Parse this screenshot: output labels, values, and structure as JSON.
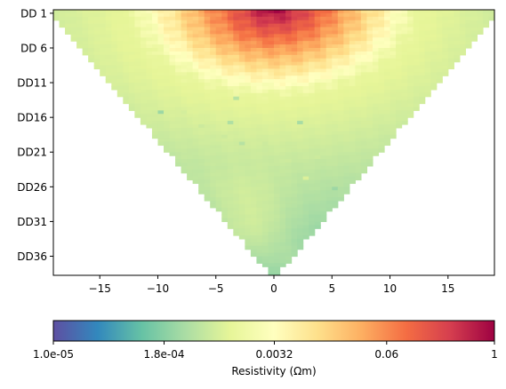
{
  "chart_data": {
    "type": "heatmap",
    "title": "",
    "xlabel": "",
    "ylabel": "",
    "xlim": [
      -19,
      19
    ],
    "ylim": [
      38,
      0
    ],
    "x_ticks": [
      -15,
      -10,
      -5,
      0,
      5,
      10,
      15
    ],
    "x_tick_labels": [
      "−15",
      "−10",
      "−5",
      "0",
      "5",
      "10",
      "15"
    ],
    "y_ticks": [
      1,
      6,
      11,
      16,
      21,
      26,
      31,
      36
    ],
    "y_tick_labels": [
      "DD 1",
      "DD 6",
      "DD11",
      "DD16",
      "DD21",
      "DD26",
      "DD31",
      "DD36"
    ],
    "n_levels": 37,
    "colormap": "Spectral_r",
    "colorbar": {
      "label": "Resistivity (Ωm)",
      "scale": "log",
      "range": [
        1e-05,
        1
      ],
      "ticks": [
        1e-05,
        0.00018,
        0.0032,
        0.06,
        1
      ],
      "tick_labels": [
        "1.0e-05",
        "1.8e-04",
        "0.0032",
        "0.06",
        "1"
      ],
      "placement": "bottom"
    },
    "low_cells": [
      [
        -9.5,
        14.8,
        0.00025
      ],
      [
        -3.5,
        16.5,
        0.00035
      ],
      [
        2.5,
        16.7,
        0.0003
      ],
      [
        -3.0,
        12.8,
        0.0004
      ],
      [
        5.5,
        26.2,
        0.00025
      ],
      [
        -2.5,
        19.3,
        0.0004
      ],
      [
        -0.5,
        19.5,
        0.0006
      ],
      [
        -4.0,
        18.5,
        0.0006
      ],
      [
        -6.0,
        17.0,
        0.0006
      ],
      [
        1.5,
        22.0,
        0.0006
      ],
      [
        4.0,
        21.5,
        0.0006
      ],
      [
        -7.5,
        15.0,
        0.0007
      ],
      [
        3.0,
        24.5,
        0.0008
      ]
    ]
  },
  "colors": {
    "spectral_r_stops": [
      "#5e4fa2",
      "#3288bd",
      "#66c2a5",
      "#abdda4",
      "#e6f598",
      "#ffffbf",
      "#fee08b",
      "#fdae61",
      "#f46d43",
      "#d53e4f",
      "#9e0142"
    ]
  }
}
